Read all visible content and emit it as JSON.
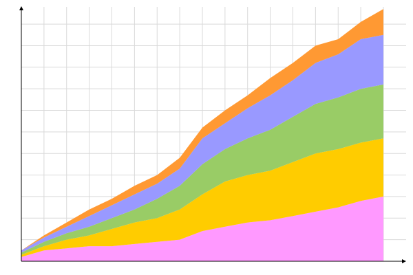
{
  "chart_data": {
    "type": "area",
    "stacked": true,
    "title": "",
    "xlabel": "",
    "ylabel": "",
    "grid": true,
    "legend": "none",
    "xlim": [
      0,
      16
    ],
    "ylim": [
      0,
      118
    ],
    "x": [
      0,
      1,
      2,
      3,
      4,
      5,
      6,
      7,
      8,
      9,
      10,
      11,
      12,
      13,
      14,
      15,
      16
    ],
    "series": [
      {
        "color": "#ff99ff",
        "values": [
          2,
          5,
          6,
          7,
          7,
          8,
          9,
          10,
          14,
          16,
          18,
          19,
          21,
          23,
          25,
          28,
          30
        ]
      },
      {
        "color": "#ffcc00",
        "values": [
          1,
          2,
          4,
          5,
          8,
          10,
          11,
          14,
          17,
          21,
          22,
          23,
          25,
          27,
          27,
          27,
          27
        ]
      },
      {
        "color": "#99cc66",
        "values": [
          1,
          2,
          3,
          4,
          5,
          6,
          9,
          11,
          14,
          15,
          17,
          19,
          21,
          23,
          24,
          25,
          25
        ]
      },
      {
        "color": "#9999ff",
        "values": [
          1,
          2,
          3,
          5,
          6,
          7,
          7,
          8,
          12,
          12,
          14,
          16,
          17,
          19,
          20,
          23,
          23
        ]
      },
      {
        "color": "#ff9933",
        "values": [
          0,
          1,
          2,
          3,
          3,
          4,
          4,
          5,
          5,
          6,
          6,
          8,
          8,
          8,
          7,
          8,
          12
        ]
      }
    ]
  }
}
